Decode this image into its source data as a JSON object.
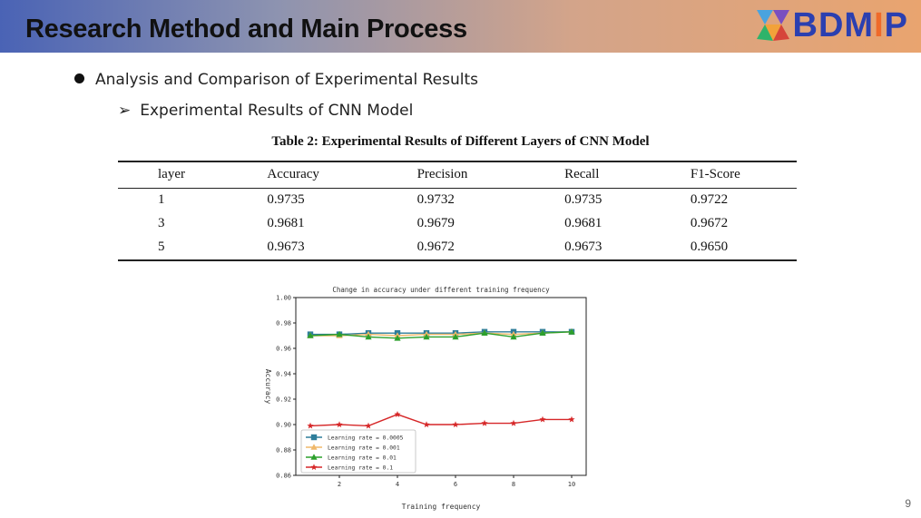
{
  "header": {
    "title": "Research Method and Main Process",
    "logo_prefix": "BDM",
    "logo_i": "I",
    "logo_suffix": "P"
  },
  "bullets": {
    "level1": "Analysis and Comparison of Experimental Results",
    "level2_marker": "➢",
    "level2": "Experimental Results of CNN Model"
  },
  "table": {
    "caption": "Table 2: Experimental Results of Different Layers of CNN Model",
    "columns": [
      "layer",
      "Accuracy",
      "Precision",
      "Recall",
      "F1-Score"
    ],
    "rows": [
      [
        "1",
        "0.9735",
        "0.9732",
        "0.9735",
        "0.9722"
      ],
      [
        "3",
        "0.9681",
        "0.9679",
        "0.9681",
        "0.9672"
      ],
      [
        "5",
        "0.9673",
        "0.9672",
        "0.9673",
        "0.9650"
      ]
    ]
  },
  "chart_data": {
    "type": "line",
    "title": "Change in accuracy under different training frequency",
    "xlabel": "Training frequency",
    "ylabel": "Accuracy",
    "x": [
      1,
      2,
      3,
      4,
      5,
      6,
      7,
      8,
      9,
      10
    ],
    "xticks": [
      2,
      4,
      6,
      8,
      10
    ],
    "yticks": [
      "0.86",
      "0.88",
      "0.90",
      "0.92",
      "0.94",
      "0.96",
      "0.98",
      "1.00"
    ],
    "ylim": [
      0.86,
      1.0
    ],
    "xlim": [
      0.5,
      10.5
    ],
    "legend_position": "lower-left",
    "series": [
      {
        "name": "Learning rate = 0.0005",
        "color": "#2e7d9a",
        "marker": "square",
        "values": [
          0.971,
          0.971,
          0.972,
          0.972,
          0.972,
          0.972,
          0.973,
          0.973,
          0.973,
          0.973
        ]
      },
      {
        "name": "Learning rate = 0.001",
        "color": "#f0b86a",
        "marker": "triangle",
        "values": [
          0.97,
          0.97,
          0.971,
          0.97,
          0.971,
          0.971,
          0.972,
          0.971,
          0.972,
          0.973
        ]
      },
      {
        "name": "Learning rate = 0.01",
        "color": "#2ca02c",
        "marker": "triangle",
        "values": [
          0.97,
          0.971,
          0.969,
          0.968,
          0.969,
          0.969,
          0.972,
          0.969,
          0.972,
          0.973
        ]
      },
      {
        "name": "Learning rate = 0.1",
        "color": "#d62728",
        "marker": "star",
        "values": [
          0.899,
          0.9,
          0.899,
          0.908,
          0.9,
          0.9,
          0.901,
          0.901,
          0.904,
          0.904
        ]
      }
    ]
  },
  "page_number": "9"
}
